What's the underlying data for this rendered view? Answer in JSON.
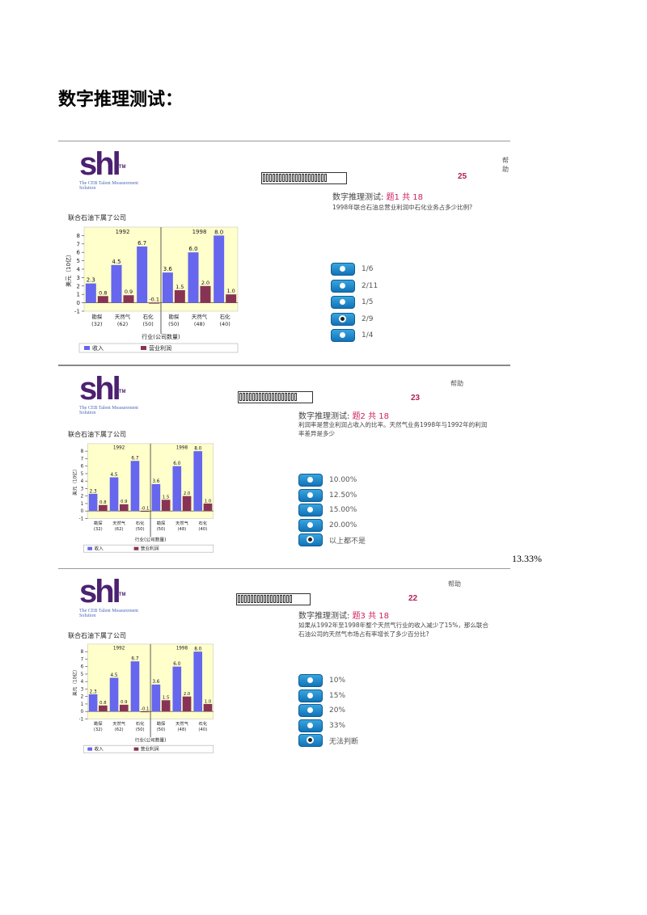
{
  "doc_title": "数字推理测试：",
  "side_note": "13.33%",
  "colors": {
    "revenue": "#6666ee",
    "profit": "#883355",
    "plot_bg": "#ffffcc",
    "accent": "#d02060"
  },
  "chart": {
    "title": "联合石油下属了公司",
    "xlabel": "行业(公司数量)",
    "ylabel": "美元（10亿）",
    "legend": [
      "收入",
      "营业利润"
    ],
    "groups": [
      {
        "label": "1992",
        "categories": [
          [
            "勘探",
            "(32)"
          ],
          [
            "天然气",
            "(62)"
          ],
          [
            "石化",
            "(50)"
          ]
        ],
        "revenue": [
          2.3,
          4.5,
          6.7
        ],
        "profit": [
          0.8,
          0.9,
          -0.1
        ]
      },
      {
        "label": "1998",
        "categories": [
          [
            "勘探",
            "(50)"
          ],
          [
            "天然气",
            "(48)"
          ],
          [
            "石化",
            "(40)"
          ]
        ],
        "revenue": [
          3.6,
          6.0,
          8.0
        ],
        "profit": [
          1.5,
          2.0,
          1.0
        ]
      }
    ]
  },
  "chart_data": [
    {
      "type": "bar",
      "title": "联合石油下属了公司",
      "xlabel": "行业(公司数量)",
      "ylabel": "美元（10亿）",
      "ylim": [
        -1,
        9
      ],
      "panels": [
        {
          "label": "1992",
          "categories": [
            "勘探 (32)",
            "天然气 (62)",
            "石化 (50)"
          ],
          "series": [
            {
              "name": "收入",
              "values": [
                2.3,
                4.5,
                6.7
              ]
            },
            {
              "name": "营业利润",
              "values": [
                0.8,
                0.9,
                -0.1
              ]
            }
          ]
        },
        {
          "label": "1998",
          "categories": [
            "勘探 (50)",
            "天然气 (48)",
            "石化 (40)"
          ],
          "series": [
            {
              "name": "收入",
              "values": [
                3.6,
                6.0,
                8.0
              ]
            },
            {
              "name": "营业利润",
              "values": [
                1.5,
                2.0,
                1.0
              ]
            }
          ]
        }
      ],
      "legend": "bottom"
    }
  ],
  "panels": [
    {
      "logo": "shl",
      "logo_tag": "The CEB Talent Measurement Solution",
      "help": "帮助",
      "score": "25",
      "header_prefix": "数字推理测试:",
      "header_accent": "题1 共 18",
      "question": "1998年联合石油总营业利润中石化业务占多少比例?",
      "options": [
        "1/6",
        "2/11",
        "1/5",
        "2/9",
        "1/4"
      ],
      "selected": 3
    },
    {
      "logo": "shl",
      "logo_tag": "The CEB Talent Measurement Solution",
      "help": "帮助",
      "score": "23",
      "header_prefix": "数字推理测试:",
      "header_accent": "题2 共 18",
      "question": "利润率是营业利润占收入的比率。天然气业务1998年与1992年的利润率差异是多少",
      "options": [
        "10.00%",
        "12.50%",
        "15.00%",
        "20.00%",
        "以上都不是"
      ],
      "selected": 4
    },
    {
      "logo": "shl",
      "logo_tag": "The CEB Talent Measurement Solution",
      "help": "帮助",
      "score": "22",
      "header_prefix": "数字推理测试:",
      "header_accent": "题3 共 18",
      "question": "如果从1992年至1998年整个天然气行业的收入减少了15%，那么联合石油公司的天然气市场占有率增长了多少百分比?",
      "options": [
        "10%",
        "15%",
        "20%",
        "33%",
        "无法判断"
      ],
      "selected": 4
    }
  ]
}
